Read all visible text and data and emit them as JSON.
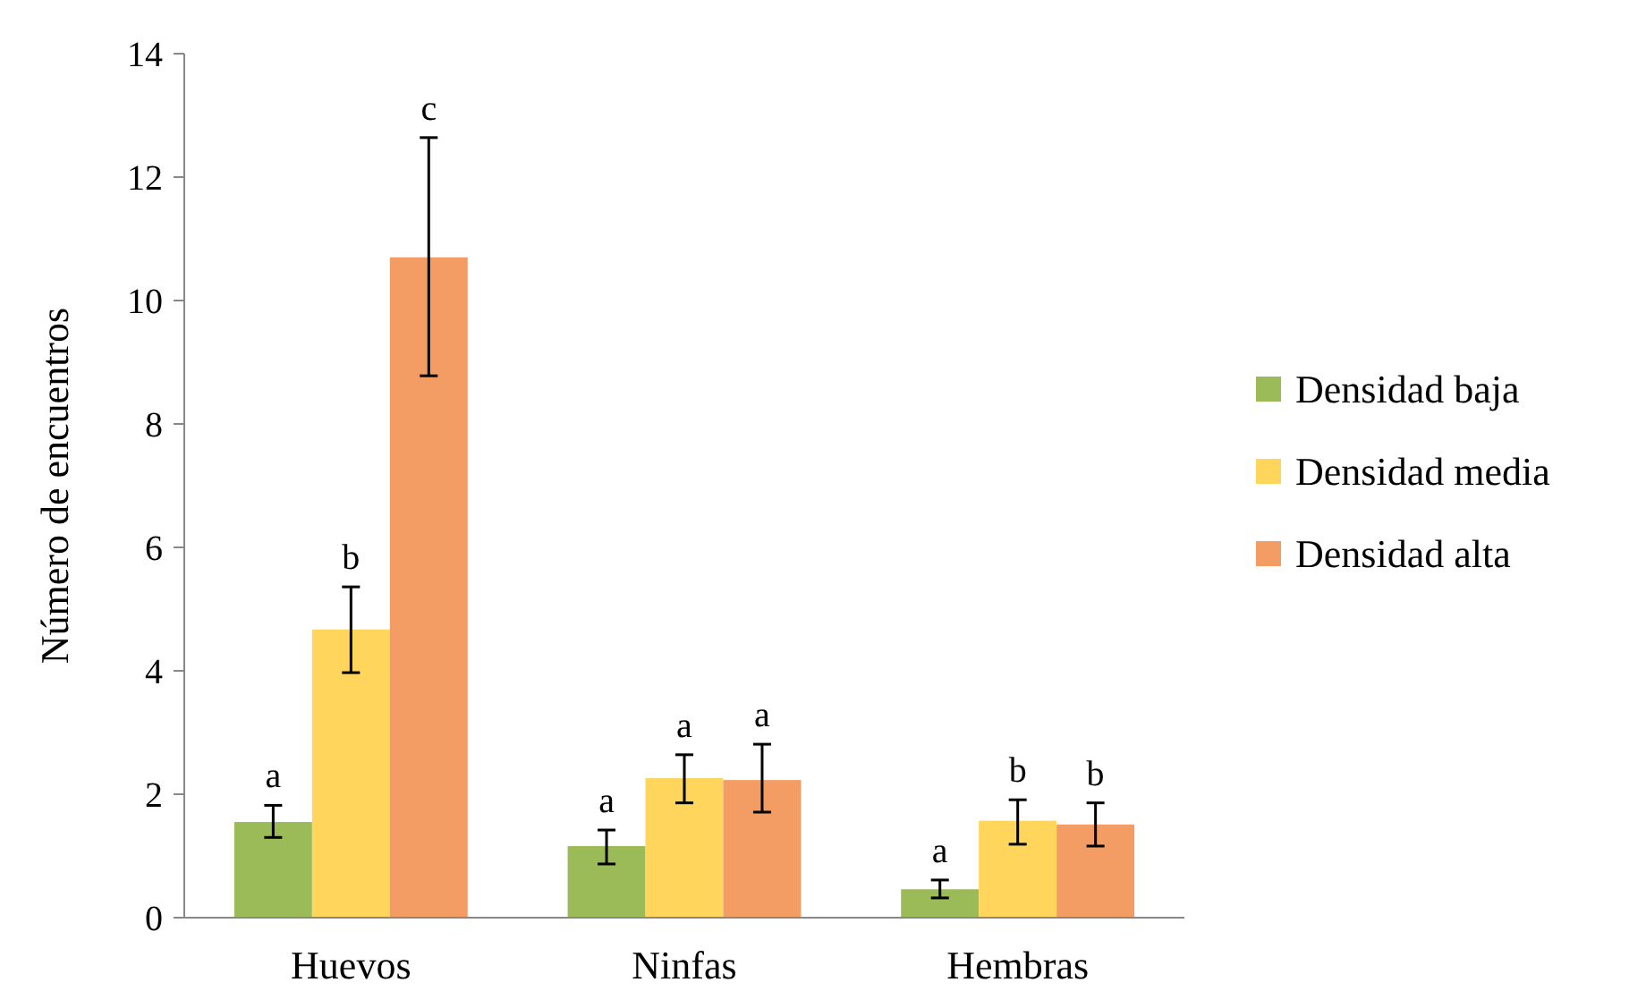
{
  "chart_data": {
    "type": "bar",
    "ylabel": "Número de encuentros",
    "categories": [
      "Huevos",
      "Ninfas",
      "Hembras"
    ],
    "series": [
      {
        "name": "Densidad baja",
        "color": "#9bbb59",
        "values": [
          1.55,
          1.16,
          0.46
        ],
        "errors": [
          [
            1.3,
            1.82
          ],
          [
            0.87,
            1.42
          ],
          [
            0.32,
            0.61
          ]
        ]
      },
      {
        "name": "Densidad media",
        "color": "#ffd65b",
        "values": [
          4.67,
          2.26,
          1.57
        ],
        "errors": [
          [
            3.97,
            5.36
          ],
          [
            1.86,
            2.64
          ],
          [
            1.19,
            1.91
          ]
        ]
      },
      {
        "name": "Densidad alta",
        "color": "#f39c63",
        "values": [
          10.7,
          2.23,
          1.51
        ],
        "errors": [
          [
            8.78,
            12.64
          ],
          [
            1.71,
            2.81
          ],
          [
            1.16,
            1.86
          ]
        ]
      }
    ],
    "annotations": [
      "a",
      "b",
      "c",
      "a",
      "a",
      "a",
      "a",
      "b",
      "b"
    ],
    "ylim": [
      0,
      14
    ],
    "yticks": [
      0,
      2,
      4,
      6,
      8,
      10,
      12,
      14
    ],
    "grid": false,
    "legend": "right"
  }
}
